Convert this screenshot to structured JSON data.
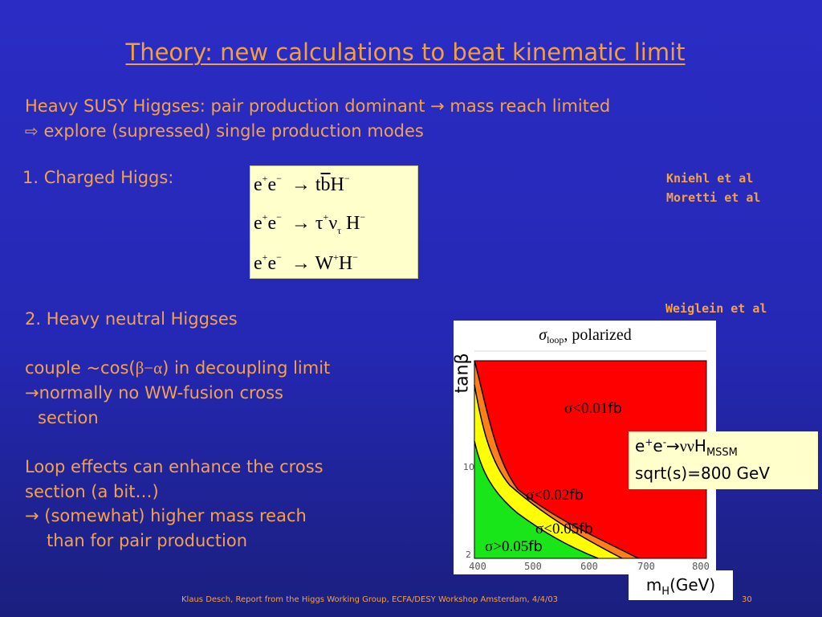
{
  "slide": {
    "title": "Theory: new calculations to beat kinematic limit",
    "intro_line1": "Heavy SUSY Higgses: pair production dominant → mass reach limited",
    "intro_line2": "explore (supressed) single production modes",
    "charged_heading": "1. Charged Higgs:",
    "refs_1": "Kniehl et al",
    "refs_2": "Moretti et al",
    "refs_3": "Weiglein et al",
    "neutral_heading": "2. Heavy neutral Higgses",
    "couple_pre": "couple ~cos(",
    "couple_greek": "β−α",
    "couple_post": ") in decoupling limit",
    "ww_line1": "→normally no WW-fusion cross",
    "ww_line2": "section",
    "loop_line1": "Loop effects can enhance the cross",
    "loop_line2": "section (a bit…)",
    "loop_line3": "→ (somewhat) higher mass reach",
    "loop_line4": "than for pair production",
    "footer": "Klaus Desch, Report from the Higgs Working Group, ECFA/DESY Workshop Amsterdam, 4/4/03",
    "page_number": "30"
  },
  "formulas": {
    "f1_prefix": "e",
    "f1_e2": "e",
    "f1_arrow": "→",
    "f1_t": "t",
    "f1_b": "b",
    "f1_H": "H",
    "f2_tau": "τ",
    "f2_nu": "ν",
    "f2_nu_sub": "τ",
    "f3_W": "W"
  },
  "plot": {
    "title": "σloop, polarized",
    "y_axis_label": "tanβ",
    "y_ticks": [
      "10",
      "2"
    ],
    "x_ticks": [
      "400",
      "500",
      "600",
      "700",
      "800"
    ],
    "region_labels": [
      "σ<0.01fb",
      "σ<0.02fb",
      "σ<0.05fb",
      "σ>0.05fb"
    ],
    "region_label_fb": "fb",
    "colors": {
      "red": "#ff0000",
      "orange": "#ff7f1a",
      "yellow": "#ffff00",
      "green": "#19e619"
    },
    "info_line1_pre": "e",
    "info_line1_mid": "e",
    "info_line1_arrow": "→ννH",
    "info_line1_sub": "MSSM",
    "info_line2": "sqrt(s)=800 GeV",
    "x_label_pre": "m",
    "x_label_sub": "H",
    "x_label_post": "(GeV)"
  },
  "colors": {
    "title": "#f0a040",
    "text": "#f3a24a"
  }
}
